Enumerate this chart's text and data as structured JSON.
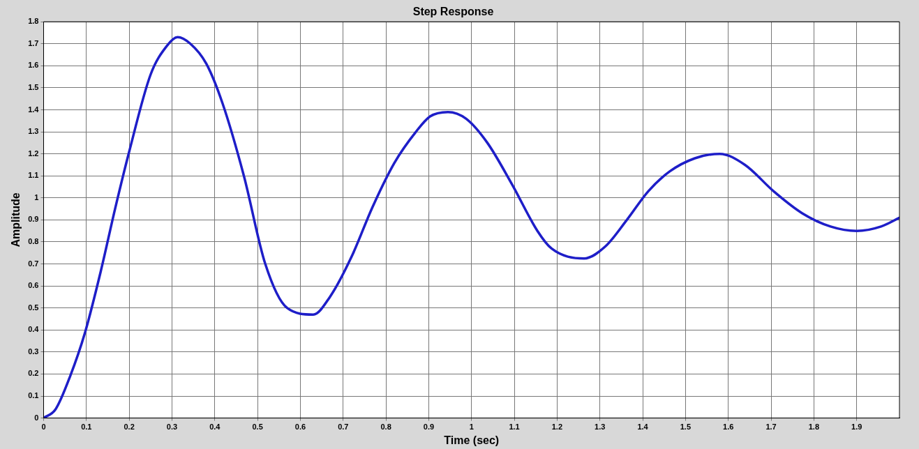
{
  "chart_data": {
    "type": "line",
    "title": "Step Response",
    "xlabel": "Time (sec)",
    "ylabel": "Amplitude",
    "series": [
      {
        "color": "#1e1ec8",
        "x": [
          0,
          0.028,
          0.062,
          0.097,
          0.134,
          0.167,
          0.2,
          0.25,
          0.288,
          0.313,
          0.343,
          0.38,
          0.418,
          0.468,
          0.518,
          0.569,
          0.63,
          0.669,
          0.719,
          0.769,
          0.82,
          0.87,
          0.903,
          0.945,
          0.987,
          1.037,
          1.095,
          1.154,
          1.187,
          1.263,
          1.313,
          1.363,
          1.413,
          1.463,
          1.522,
          1.58,
          1.639,
          1.706,
          1.773,
          1.839,
          1.9,
          1.957,
          2.0
        ],
        "values": [
          0,
          0.04,
          0.19,
          0.39,
          0.67,
          0.95,
          1.21,
          1.56,
          1.69,
          1.73,
          1.7,
          1.61,
          1.43,
          1.1,
          0.7,
          0.5,
          0.47,
          0.55,
          0.73,
          0.96,
          1.16,
          1.3,
          1.37,
          1.39,
          1.36,
          1.25,
          1.06,
          0.85,
          0.77,
          0.725,
          0.78,
          0.9,
          1.03,
          1.12,
          1.18,
          1.2,
          1.15,
          1.03,
          0.93,
          0.87,
          0.85,
          0.87,
          0.91
        ]
      }
    ],
    "xlim": [
      0,
      2
    ],
    "xticks": [
      0,
      0.1,
      0.2,
      0.3,
      0.4,
      0.5,
      0.6,
      0.7,
      0.8,
      0.9,
      1,
      1.1,
      1.2,
      1.3,
      1.4,
      1.5,
      1.6,
      1.7,
      1.8,
      1.9
    ],
    "ylim": [
      0,
      1.8
    ],
    "yticks": [
      0,
      0.1,
      0.2,
      0.3,
      0.4,
      0.5,
      0.6,
      0.7,
      0.8,
      0.9,
      1,
      1.1,
      1.2,
      1.3,
      1.4,
      1.5,
      1.6,
      1.7,
      1.8
    ],
    "grid": true,
    "legend": false,
    "marker": "none",
    "line_style": "solid"
  }
}
